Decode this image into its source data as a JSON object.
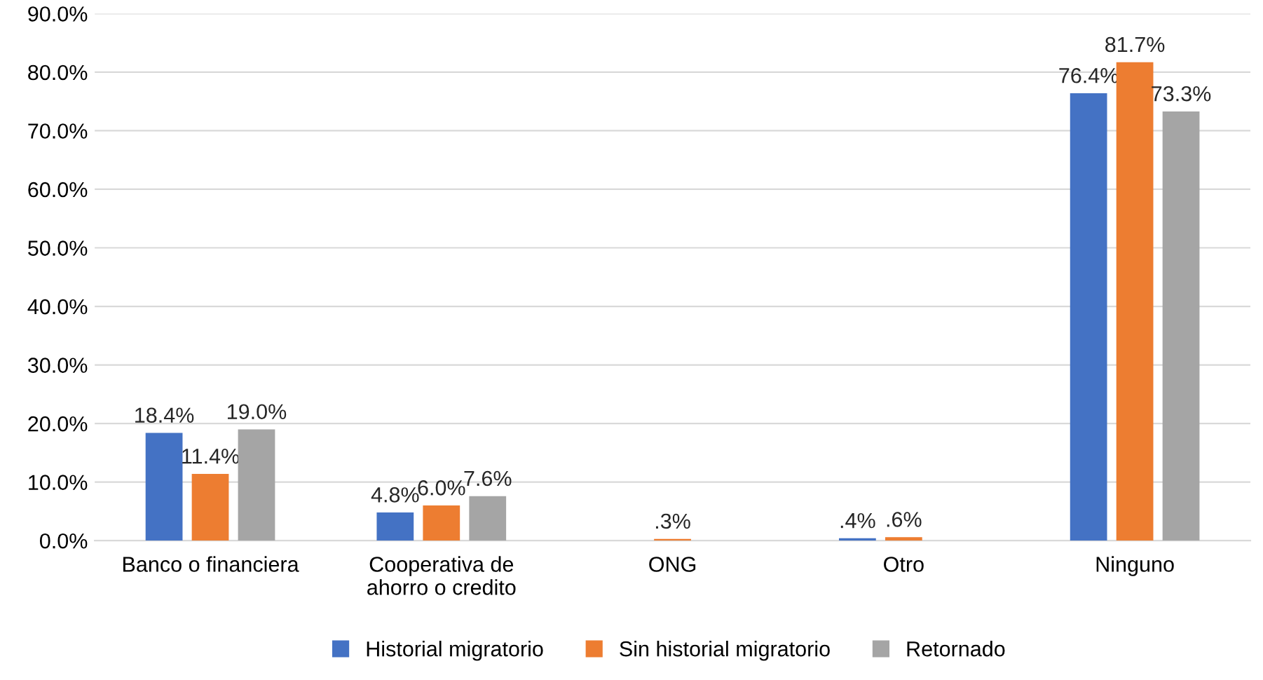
{
  "chart_data": {
    "type": "bar",
    "categories": [
      "Banco o financiera",
      "Cooperativa de\nahorro o credito",
      "ONG",
      "Otro",
      "Ninguno"
    ],
    "series": [
      {
        "name": "Historial migratorio",
        "color": "#4472c4",
        "values": [
          18.4,
          4.8,
          null,
          0.4,
          76.4
        ],
        "value_labels": [
          "18.4%",
          "4.8%",
          null,
          ".4%",
          "76.4%"
        ]
      },
      {
        "name": "Sin historial migratorio",
        "color": "#ed7d31",
        "values": [
          11.4,
          6.0,
          0.3,
          0.6,
          81.7
        ],
        "value_labels": [
          "11.4%",
          "6.0%",
          ".3%",
          ".6%",
          "81.7%"
        ]
      },
      {
        "name": "Retornado",
        "color": "#a5a5a5",
        "values": [
          19.0,
          7.6,
          null,
          null,
          73.3
        ],
        "value_labels": [
          "19.0%",
          "7.6%",
          null,
          null,
          "73.3%"
        ]
      }
    ],
    "ylim": [
      0,
      90
    ],
    "yticks": [
      {
        "value": 0,
        "label": "0.0%"
      },
      {
        "value": 10,
        "label": "10.0%"
      },
      {
        "value": 20,
        "label": "20.0%"
      },
      {
        "value": 30,
        "label": "30.0%"
      },
      {
        "value": 40,
        "label": "40.0%"
      },
      {
        "value": 50,
        "label": "50.0%"
      },
      {
        "value": 60,
        "label": "60.0%"
      },
      {
        "value": 70,
        "label": "70.0%"
      },
      {
        "value": 80,
        "label": "80.0%"
      },
      {
        "value": 90,
        "label": "90.0%"
      }
    ],
    "grid": "y",
    "legend": "bottom"
  }
}
